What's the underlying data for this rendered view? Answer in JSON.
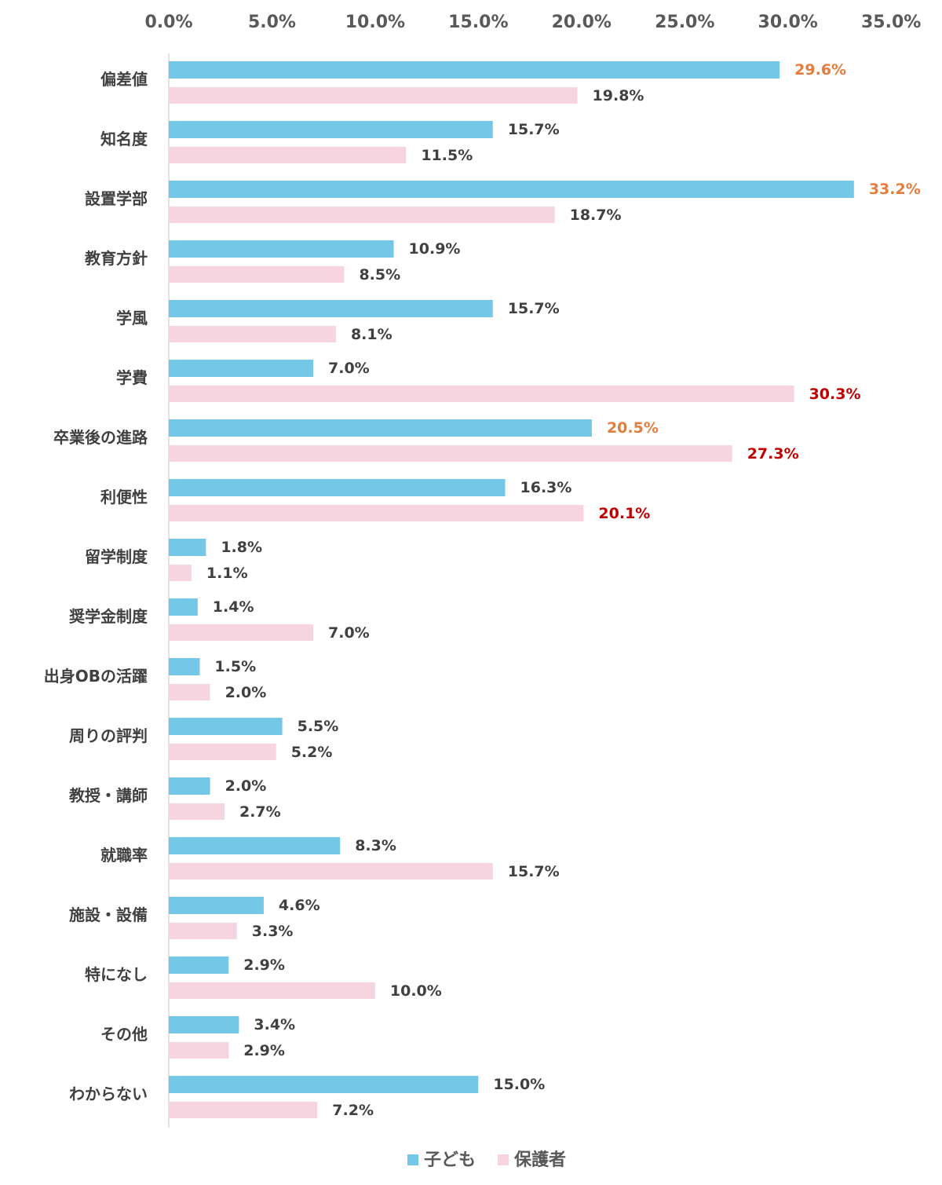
{
  "chart_data": {
    "type": "bar",
    "orientation": "horizontal",
    "categories": [
      "偏差値",
      "知名度",
      "設置学部",
      "教育方針",
      "学風",
      "学費",
      "卒業後の進路",
      "利便性",
      "留学制度",
      "奨学金制度",
      "出身OBの活躍",
      "周りの評判",
      "教授・講師",
      "就職率",
      "施設・設備",
      "特になし",
      "その他",
      "わからない"
    ],
    "x_ticks": [
      "0.0%",
      "5.0%",
      "10.0%",
      "15.0%",
      "20.0%",
      "25.0%",
      "30.0%",
      "35.0%"
    ],
    "xlim": [
      0,
      35
    ],
    "axis_position": "top",
    "grid": false,
    "legend_position": "bottom",
    "series": [
      {
        "name": "子ども",
        "color": "#74c7e6",
        "values": [
          29.6,
          15.7,
          33.2,
          10.9,
          15.7,
          7.0,
          20.5,
          16.3,
          1.8,
          1.4,
          1.5,
          5.5,
          2.0,
          8.3,
          4.6,
          2.9,
          3.4,
          15.0
        ],
        "labels": [
          "29.6%",
          "15.7%",
          "33.2%",
          "10.9%",
          "15.7%",
          "7.0%",
          "20.5%",
          "16.3%",
          "1.8%",
          "1.4%",
          "1.5%",
          "5.5%",
          "2.0%",
          "8.3%",
          "4.6%",
          "2.9%",
          "3.4%",
          "15.0%"
        ],
        "label_colors": [
          "#e47c3c",
          "#404040",
          "#e47c3c",
          "#404040",
          "#404040",
          "#404040",
          "#e47c3c",
          "#404040",
          "#404040",
          "#404040",
          "#404040",
          "#404040",
          "#404040",
          "#404040",
          "#404040",
          "#404040",
          "#404040",
          "#404040"
        ]
      },
      {
        "name": "保護者",
        "color": "#f7d5e0",
        "values": [
          19.8,
          11.5,
          18.7,
          8.5,
          8.1,
          30.3,
          27.3,
          20.1,
          1.1,
          7.0,
          2.0,
          5.2,
          2.7,
          15.7,
          3.3,
          10.0,
          2.9,
          7.2
        ],
        "labels": [
          "19.8%",
          "11.5%",
          "18.7%",
          "8.5%",
          "8.1%",
          "30.3%",
          "27.3%",
          "20.1%",
          "1.1%",
          "7.0%",
          "2.0%",
          "5.2%",
          "2.7%",
          "15.7%",
          "3.3%",
          "10.0%",
          "2.9%",
          "7.2%"
        ],
        "label_colors": [
          "#404040",
          "#404040",
          "#404040",
          "#404040",
          "#404040",
          "#c00000",
          "#c00000",
          "#c00000",
          "#404040",
          "#404040",
          "#404040",
          "#404040",
          "#404040",
          "#404040",
          "#404040",
          "#404040",
          "#404040",
          "#404040"
        ]
      }
    ]
  }
}
